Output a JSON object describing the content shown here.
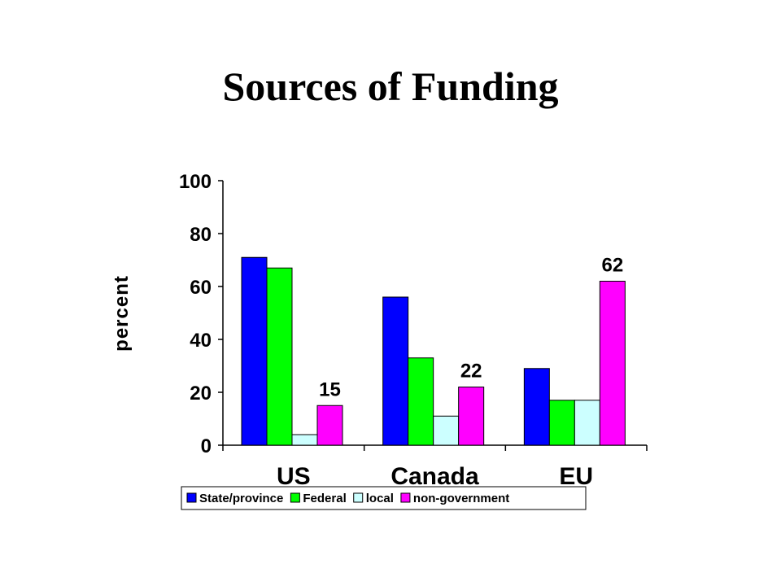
{
  "slide": {
    "title": "Sources of Funding"
  },
  "chart_data": {
    "type": "bar",
    "categories": [
      "US",
      "Canada",
      "EU"
    ],
    "series": [
      {
        "name": "State/province",
        "values": [
          71,
          56,
          29
        ],
        "color": "#0000ff"
      },
      {
        "name": "Federal",
        "values": [
          67,
          33,
          17
        ],
        "color": "#00ff00"
      },
      {
        "name": "local",
        "values": [
          4,
          11,
          17
        ],
        "color": "#ccffff"
      },
      {
        "name": "non-government",
        "values": [
          15,
          22,
          62
        ],
        "color": "#ff00ff"
      }
    ],
    "data_labels": [
      {
        "series": 3,
        "category": 0,
        "text": "15"
      },
      {
        "series": 3,
        "category": 1,
        "text": "22"
      },
      {
        "series": 3,
        "category": 2,
        "text": "62"
      }
    ],
    "ylabel": "percent",
    "xlabel": "",
    "ylim": [
      0,
      100
    ],
    "yticks": [
      0,
      20,
      40,
      60,
      80,
      100
    ],
    "grid": false,
    "legend_position": "bottom"
  }
}
